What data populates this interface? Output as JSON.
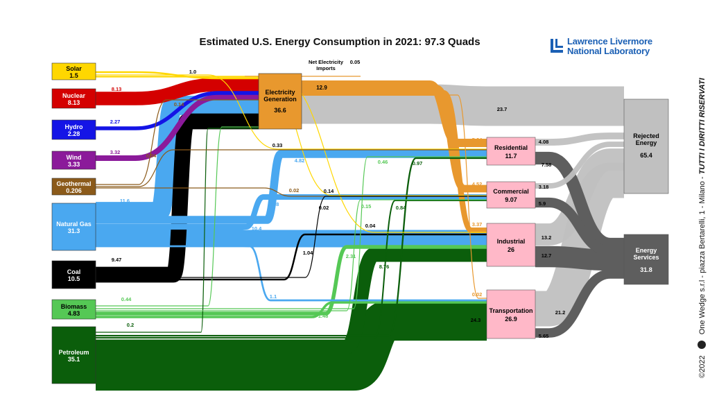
{
  "title": "Estimated U.S. Energy Consumption in 2021: 97.3 Quads",
  "logo": {
    "line1": "Lawrence Livermore",
    "line2": "National Laboratory"
  },
  "side_text": {
    "copyright": "©2022",
    "company": "One Wedge s.r.l - piazza Bertarelli, 1 - Milano - ",
    "rights": "TUTTI I DIRITTI RISERVATI"
  },
  "colors": {
    "solar": "#ffd700",
    "nuclear": "#d40000",
    "hydro": "#1414e6",
    "wind": "#8b1a9a",
    "geothermal": "#8b5a1a",
    "natural_gas": "#4aa8f0",
    "coal": "#000000",
    "biomass": "#55c855",
    "petroleum": "#0b5e0b",
    "electricity": "#e8982e",
    "rejected": "#c0c0c0",
    "services": "#5e5e5e",
    "sector_fill": "#ffb8c8"
  },
  "sources": [
    {
      "id": "solar",
      "label": "Solar",
      "value": "1.5"
    },
    {
      "id": "nuclear",
      "label": "Nuclear",
      "value": "8.13"
    },
    {
      "id": "hydro",
      "label": "Hydro",
      "value": "2.28"
    },
    {
      "id": "wind",
      "label": "Wind",
      "value": "3.33"
    },
    {
      "id": "geothermal",
      "label": "Geothermal",
      "value": "0.206"
    },
    {
      "id": "natural_gas",
      "label": "Natural Gas",
      "value": "31.3"
    },
    {
      "id": "coal",
      "label": "Coal",
      "value": "10.5"
    },
    {
      "id": "biomass",
      "label": "Biomass",
      "value": "4.83"
    },
    {
      "id": "petroleum",
      "label": "Petroleum",
      "value": "35.1"
    }
  ],
  "electricity": {
    "label_line1": "Electricity",
    "label_line2": "Generation",
    "value": "36.6"
  },
  "net_imports": {
    "label_line1": "Net Electricity",
    "label_line2": "Imports",
    "value": "0.05"
  },
  "sectors": [
    {
      "id": "residential",
      "label": "Residential",
      "value": "11.7"
    },
    {
      "id": "commercial",
      "label": "Commercial",
      "value": "9.07"
    },
    {
      "id": "industrial",
      "label": "Industrial",
      "value": "26"
    },
    {
      "id": "transportation",
      "label": "Transportation",
      "value": "26.9"
    }
  ],
  "sinks": [
    {
      "id": "rejected",
      "label_line1": "Rejected",
      "label_line2": "Energy",
      "value": "65.4"
    },
    {
      "id": "services",
      "label_line1": "Energy",
      "label_line2": "Services",
      "value": "31.8"
    }
  ],
  "flows": [
    {
      "from": "solar",
      "to": "electricity",
      "value": 1.0,
      "label": "1.0"
    },
    {
      "from": "solar",
      "to": "residential",
      "value": 0.33,
      "label": "0.33"
    },
    {
      "from": "solar",
      "to": "commercial",
      "value": 0.14,
      "label": "0.14"
    },
    {
      "from": "solar",
      "to": "industrial",
      "value": 0.04,
      "label": "0.04"
    },
    {
      "from": "nuclear",
      "to": "electricity",
      "value": 8.13,
      "label": "8.13"
    },
    {
      "from": "hydro",
      "to": "electricity",
      "value": 2.27,
      "label": "2.27"
    },
    {
      "from": "wind",
      "to": "electricity",
      "value": 3.32,
      "label": "3.32"
    },
    {
      "from": "geothermal",
      "to": "electricity",
      "value": 0.14,
      "label": "0.14"
    },
    {
      "from": "geothermal",
      "to": "residential",
      "value": 0.04,
      "label": "0.04"
    },
    {
      "from": "geothermal",
      "to": "commercial",
      "value": 0.02,
      "label": "0.02"
    },
    {
      "from": "natural_gas",
      "to": "electricity",
      "value": 11.6,
      "label": "11.6"
    },
    {
      "from": "natural_gas",
      "to": "residential",
      "value": 4.82,
      "label": "4.82"
    },
    {
      "from": "natural_gas",
      "to": "commercial",
      "value": 3.38,
      "label": "3.38"
    },
    {
      "from": "natural_gas",
      "to": "industrial",
      "value": 10.4,
      "label": "10.4"
    },
    {
      "from": "natural_gas",
      "to": "transportation",
      "value": 1.1,
      "label": "1.1"
    },
    {
      "from": "coal",
      "to": "electricity",
      "value": 9.47,
      "label": "9.47"
    },
    {
      "from": "coal",
      "to": "commercial",
      "value": 0.02,
      "label": "0.02"
    },
    {
      "from": "coal",
      "to": "industrial",
      "value": 1.04,
      "label": "1.04"
    },
    {
      "from": "biomass",
      "to": "electricity",
      "value": 0.44,
      "label": "0.44"
    },
    {
      "from": "biomass",
      "to": "residential",
      "value": 0.46,
      "label": "0.46"
    },
    {
      "from": "biomass",
      "to": "commercial",
      "value": 0.15,
      "label": "0.15"
    },
    {
      "from": "biomass",
      "to": "industrial",
      "value": 2.31,
      "label": "2.31"
    },
    {
      "from": "biomass",
      "to": "transportation",
      "value": 1.48,
      "label": "1.48"
    },
    {
      "from": "petroleum",
      "to": "electricity",
      "value": 0.2,
      "label": "0.2"
    },
    {
      "from": "petroleum",
      "to": "residential",
      "value": 0.97,
      "label": "0.97"
    },
    {
      "from": "petroleum",
      "to": "commercial",
      "value": 0.84,
      "label": "0.84"
    },
    {
      "from": "petroleum",
      "to": "industrial",
      "value": 8.76,
      "label": "8.76"
    },
    {
      "from": "petroleum",
      "to": "transportation",
      "value": 24.3,
      "label": "24.3"
    },
    {
      "from": "net_imports",
      "to": "electricity",
      "value": 0.05,
      "label": ""
    },
    {
      "from": "electricity",
      "to": "rejected",
      "value": 23.7,
      "label": "23.7"
    },
    {
      "from": "electricity",
      "to": "residential",
      "value": 5.04,
      "label": "5.04"
    },
    {
      "from": "electricity",
      "to": "commercial",
      "value": 4.52,
      "label": "4.52"
    },
    {
      "from": "electricity",
      "to": "industrial",
      "value": 3.37,
      "label": "3.37"
    },
    {
      "from": "electricity",
      "to": "transportation",
      "value": 0.02,
      "label": "0.02"
    },
    {
      "from": "residential",
      "to": "rejected",
      "value": 4.08,
      "label": "4.08"
    },
    {
      "from": "residential",
      "to": "services",
      "value": 7.58,
      "label": "7.58"
    },
    {
      "from": "commercial",
      "to": "rejected",
      "value": 3.18,
      "label": "3.18"
    },
    {
      "from": "commercial",
      "to": "services",
      "value": 5.9,
      "label": "5.9"
    },
    {
      "from": "industrial",
      "to": "rejected",
      "value": 13.2,
      "label": "13.2"
    },
    {
      "from": "industrial",
      "to": "services",
      "value": 12.7,
      "label": "12.7"
    },
    {
      "from": "transportation",
      "to": "rejected",
      "value": 21.2,
      "label": "21.2"
    },
    {
      "from": "transportation",
      "to": "services",
      "value": 5.65,
      "label": "5.65"
    }
  ],
  "electricity_total_label": "12.9"
}
